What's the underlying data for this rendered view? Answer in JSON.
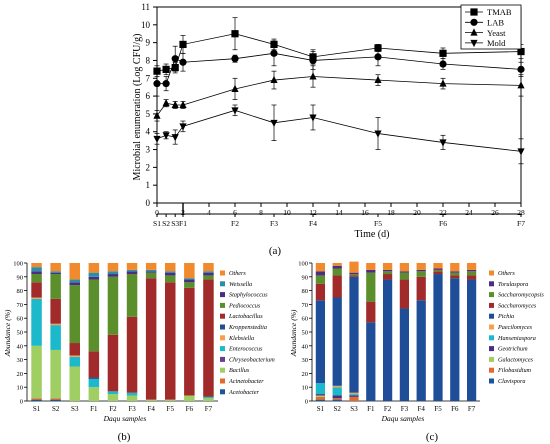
{
  "chart_data": [
    {
      "panel": "(a)",
      "type": "line",
      "ylabel": "Microbial enumeration (Log CFU/g)",
      "xlabel": "Time (d)",
      "ylim": [
        0,
        11
      ],
      "yticks": [
        "0",
        "1",
        "2",
        "3",
        "4",
        "5",
        "6",
        "7",
        "8",
        "9",
        "10",
        "11"
      ],
      "xlim": [
        0,
        28
      ],
      "xticks": [
        "0",
        "2",
        "4",
        "6",
        "8",
        "10",
        "12",
        "14",
        "16",
        "18",
        "20",
        "22",
        "24",
        "26",
        "28"
      ],
      "sample_labels": [
        {
          "label": "S1",
          "day": 0
        },
        {
          "label": "S2",
          "day": 0.7
        },
        {
          "label": "S3",
          "day": 1.4
        },
        {
          "label": "F1",
          "day": 2
        },
        {
          "label": "F2",
          "day": 6
        },
        {
          "label": "F3",
          "day": 9
        },
        {
          "label": "F4",
          "day": 12
        },
        {
          "label": "F5",
          "day": 17
        },
        {
          "label": "F6",
          "day": 22
        },
        {
          "label": "F7",
          "day": 28
        }
      ],
      "legend_position": "top-right",
      "series": [
        {
          "name": "TMAB",
          "marker": "square",
          "x": [
            0,
            0.7,
            1.4,
            2,
            6,
            9,
            12,
            17,
            22,
            28
          ],
          "y": [
            7.4,
            7.5,
            7.6,
            8.9,
            9.5,
            8.9,
            8.2,
            8.7,
            8.4,
            8.5
          ],
          "err": [
            0.3,
            0.3,
            0.3,
            0.5,
            0.9,
            0.3,
            0.4,
            0.2,
            0.3,
            0.4
          ]
        },
        {
          "name": "LAB",
          "marker": "circle",
          "x": [
            0,
            0.7,
            1.4,
            2,
            6,
            9,
            12,
            17,
            22,
            28
          ],
          "y": [
            6.7,
            6.7,
            8.1,
            7.9,
            8.1,
            8.4,
            8.0,
            8.2,
            7.8,
            7.5
          ],
          "err": [
            0.7,
            0.4,
            0.7,
            0.5,
            0.2,
            0.7,
            0.5,
            0.5,
            0.3,
            0.4
          ]
        },
        {
          "name": "Yeast",
          "marker": "triangle-up",
          "x": [
            0,
            0.7,
            1.4,
            2,
            6,
            9,
            12,
            17,
            22,
            28
          ],
          "y": [
            4.9,
            5.6,
            5.5,
            5.5,
            6.4,
            6.9,
            7.1,
            6.9,
            6.7,
            6.6
          ],
          "err": [
            0.3,
            0.2,
            0.2,
            0.2,
            0.6,
            0.5,
            0.6,
            0.3,
            0.3,
            0.6
          ]
        },
        {
          "name": "Mold",
          "marker": "triangle-down",
          "x": [
            0,
            0.7,
            1.4,
            2,
            6,
            9,
            12,
            17,
            22,
            28
          ],
          "y": [
            3.6,
            3.8,
            3.7,
            4.3,
            5.2,
            4.5,
            4.8,
            3.9,
            3.4,
            2.9
          ],
          "err": [
            0.3,
            0.2,
            0.4,
            0.3,
            0.3,
            1.0,
            0.7,
            0.9,
            0.4,
            0.7
          ]
        }
      ]
    },
    {
      "panel": "(b)",
      "type": "bar",
      "stacked": true,
      "ylabel": "Abundance (%)",
      "xlabel": "Daqu samples",
      "ylim": [
        0,
        100
      ],
      "yticks": [
        "0",
        "10",
        "20",
        "30",
        "40",
        "50",
        "60",
        "70",
        "80",
        "90",
        "100"
      ],
      "categories": [
        "S1",
        "S2",
        "S3",
        "F1",
        "F2",
        "F3",
        "F4",
        "F5",
        "F6",
        "F7"
      ],
      "legend_position": "right",
      "series": [
        {
          "name": "Acetobacter",
          "color": "#17569b",
          "values": [
            1,
            1,
            0,
            0,
            0,
            0,
            0,
            0,
            0,
            0
          ]
        },
        {
          "name": "Acinetobacter",
          "color": "#e26b2c",
          "values": [
            1,
            1,
            0,
            0,
            0,
            0,
            0,
            0,
            0,
            0
          ]
        },
        {
          "name": "Bacillus",
          "color": "#9fce63",
          "values": [
            38,
            35,
            25,
            10,
            5,
            4,
            1,
            1,
            4,
            2
          ]
        },
        {
          "name": "Chryseobacterium",
          "color": "#6a3d9a",
          "values": [
            0,
            0,
            0,
            0,
            0,
            0,
            0,
            0,
            0,
            0
          ]
        },
        {
          "name": "Enterococcus",
          "color": "#1cb8cc",
          "values": [
            34,
            18,
            7,
            6,
            2,
            2,
            0,
            0,
            0,
            1
          ]
        },
        {
          "name": "Klebsiella",
          "color": "#f6a04d",
          "values": [
            1,
            1,
            1,
            0,
            0,
            0,
            0,
            0,
            0,
            0
          ]
        },
        {
          "name": "Kroppenstedtia",
          "color": "#1f4e99",
          "values": [
            0,
            0,
            0,
            1,
            0,
            0,
            0,
            0,
            0,
            0
          ]
        },
        {
          "name": "Lactobacillus",
          "color": "#a12a2a",
          "values": [
            11,
            18,
            9,
            19,
            41,
            55,
            88,
            85,
            78,
            85
          ]
        },
        {
          "name": "Pediococcus",
          "color": "#5b8f2c",
          "values": [
            6,
            18,
            42,
            52,
            42,
            31,
            4,
            5,
            4,
            3
          ]
        },
        {
          "name": "Staphylococcus",
          "color": "#4b2e83",
          "values": [
            2,
            1,
            2,
            2,
            2,
            2,
            1,
            2,
            2,
            2
          ]
        },
        {
          "name": "Weissella",
          "color": "#2a8fa6",
          "values": [
            3,
            1,
            2,
            3,
            2,
            1,
            1,
            1,
            1,
            1
          ]
        },
        {
          "name": "Others",
          "color": "#f08a2c",
          "values": [
            3,
            6,
            12,
            7,
            6,
            5,
            5,
            6,
            11,
            6
          ]
        }
      ],
      "legend_order": [
        "Others",
        "Weissella",
        "Staphylococcus",
        "Pediococcus",
        "Lactobacillus",
        "Kroppenstedtia",
        "Klebsiella",
        "Enterococcus",
        "Chryseobacterium",
        "Bacillus",
        "Acinetobacter",
        "Acetobacter"
      ]
    },
    {
      "panel": "(c)",
      "type": "bar",
      "stacked": true,
      "ylabel": "Abundance (%)",
      "xlabel": "Daqu samples",
      "ylim": [
        0,
        100
      ],
      "yticks": [
        "0",
        "10",
        "20",
        "30",
        "40",
        "50",
        "60",
        "70",
        "80",
        "90",
        "100"
      ],
      "categories": [
        "S1",
        "S2",
        "S3",
        "F1",
        "F2",
        "F3",
        "F4",
        "F5",
        "F6",
        "F7"
      ],
      "legend_position": "right",
      "series": [
        {
          "name": "Clavispora",
          "color": "#17569b",
          "values": [
            1,
            1,
            0,
            0,
            0,
            0,
            0,
            0,
            0,
            0
          ]
        },
        {
          "name": "Filobasidium",
          "color": "#e26b2c",
          "values": [
            2,
            1,
            3,
            0,
            0,
            0,
            0,
            0,
            0,
            0
          ]
        },
        {
          "name": "Galactomyces",
          "color": "#9fce63",
          "values": [
            1,
            0,
            0,
            0,
            0,
            0,
            0,
            0,
            0,
            0
          ]
        },
        {
          "name": "Geotrichum",
          "color": "#4b2e83",
          "values": [
            1,
            2,
            1,
            0,
            0,
            0,
            0,
            0,
            0,
            0
          ]
        },
        {
          "name": "Hanseniaspora",
          "color": "#1cb8cc",
          "values": [
            8,
            6,
            1,
            0,
            0,
            0,
            0,
            0,
            0,
            0
          ]
        },
        {
          "name": "Paecilomyces",
          "color": "#f6a04d",
          "values": [
            0,
            1,
            1,
            0,
            0,
            0,
            0,
            0,
            0,
            0
          ]
        },
        {
          "name": "Pichia",
          "color": "#1f4e99",
          "values": [
            60,
            64,
            84,
            57,
            88,
            67,
            73,
            92,
            89,
            88
          ]
        },
        {
          "name": "Saccharomyces",
          "color": "#a12a2a",
          "values": [
            12,
            16,
            1,
            15,
            4,
            21,
            17,
            2,
            2,
            3
          ]
        },
        {
          "name": "Saccharomycopsis",
          "color": "#5b8f2c",
          "values": [
            6,
            5,
            1,
            21,
            2,
            5,
            4,
            1,
            2,
            3
          ]
        },
        {
          "name": "Torulaspora",
          "color": "#4b2e83",
          "values": [
            3,
            2,
            1,
            2,
            1,
            1,
            1,
            1,
            1,
            1
          ]
        },
        {
          "name": "Others",
          "color": "#f08a2c",
          "values": [
            6,
            2,
            8,
            5,
            5,
            6,
            5,
            4,
            6,
            5
          ]
        }
      ],
      "legend_order": [
        "Others",
        "Torulaspora",
        "Saccharomycopsis",
        "Saccharomyces",
        "Pichia",
        "Paecilomyces",
        "Hanseniaspora",
        "Geotrichum",
        "Galactomyces",
        "Filobasidium",
        "Clavispora"
      ]
    }
  ]
}
